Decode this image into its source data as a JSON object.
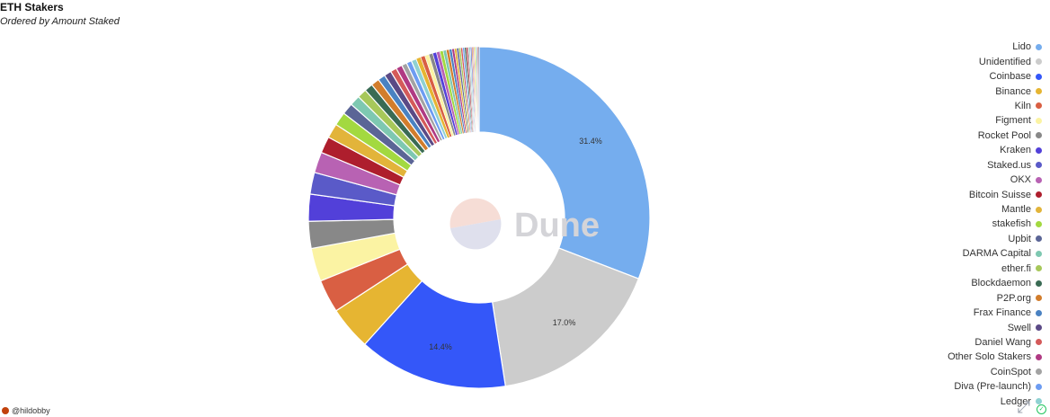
{
  "header": {
    "title": "ETH Stakers",
    "subtitle": "Ordered by Amount Staked"
  },
  "watermark": "Dune",
  "footer": {
    "author": "@hildobby"
  },
  "icons": {
    "expand": "expand-icon",
    "status": "check-icon"
  },
  "chart_data": {
    "type": "pie",
    "variant": "donut",
    "legend_position": "right",
    "slices": [
      {
        "label": "Lido",
        "value": 31.4,
        "color": "#75adee",
        "shown_label": "31.4%"
      },
      {
        "label": "Unidentified",
        "value": 17.0,
        "color": "#cccccc",
        "shown_label": "17.0%"
      },
      {
        "label": "Coinbase",
        "value": 14.4,
        "color": "#3457f9",
        "shown_label": "14.4%"
      },
      {
        "label": "Binance",
        "value": 4.2,
        "color": "#e6b532"
      },
      {
        "label": "Kiln",
        "value": 3.2,
        "color": "#d95f43"
      },
      {
        "label": "Figment",
        "value": 3.2,
        "color": "#fbf3a3"
      },
      {
        "label": "Rocket Pool",
        "value": 2.6,
        "color": "#888888"
      },
      {
        "label": "Kraken",
        "value": 2.6,
        "color": "#5240d9"
      },
      {
        "label": "Staked.us",
        "value": 2.1,
        "color": "#5a5ac8"
      },
      {
        "label": "OKX",
        "value": 2.0,
        "color": "#b862b3"
      },
      {
        "label": "Bitcoin Suisse",
        "value": 1.6,
        "color": "#ae1e2d"
      },
      {
        "label": "Mantle",
        "value": 1.4,
        "color": "#e2b43a"
      },
      {
        "label": "stakefish",
        "value": 1.3,
        "color": "#a3d940"
      },
      {
        "label": "Upbit",
        "value": 1.1,
        "color": "#5b6596"
      },
      {
        "label": "DARMA Capital",
        "value": 1.0,
        "color": "#7ec8b1"
      },
      {
        "label": "ether.fi",
        "value": 0.9,
        "color": "#a7c85a"
      },
      {
        "label": "Blockdaemon",
        "value": 0.8,
        "color": "#3a6b54"
      },
      {
        "label": "P2P.org",
        "value": 0.8,
        "color": "#d27d2c"
      },
      {
        "label": "Frax Finance",
        "value": 0.7,
        "color": "#4a82c2"
      },
      {
        "label": "Swell",
        "value": 0.7,
        "color": "#5b4a86"
      },
      {
        "label": "Daniel Wang",
        "value": 0.6,
        "color": "#d45a5a"
      },
      {
        "label": "Other Solo Stakers",
        "value": 0.6,
        "color": "#b03a83"
      },
      {
        "label": "CoinSpot",
        "value": 0.5,
        "color": "#a3a3a3"
      },
      {
        "label": "Diva (Pre-launch)",
        "value": 0.5,
        "color": "#6d9cf2"
      },
      {
        "label": "Ledger",
        "value": 0.5,
        "color": "#8fd1d2"
      }
    ],
    "tail_slices": [
      {
        "value": 0.45,
        "color": "#e6b532"
      },
      {
        "value": 0.42,
        "color": "#d95f43"
      },
      {
        "value": 0.4,
        "color": "#fbf3a3"
      },
      {
        "value": 0.38,
        "color": "#888888"
      },
      {
        "value": 0.36,
        "color": "#5240d9"
      },
      {
        "value": 0.34,
        "color": "#b862b3"
      },
      {
        "value": 0.32,
        "color": "#a3d940"
      },
      {
        "value": 0.3,
        "color": "#7ec8b1"
      },
      {
        "value": 0.28,
        "color": "#d27d2c"
      },
      {
        "value": 0.26,
        "color": "#4a82c2"
      },
      {
        "value": 0.24,
        "color": "#b03a83"
      },
      {
        "value": 0.22,
        "color": "#e2b43a"
      },
      {
        "value": 0.2,
        "color": "#5b6596"
      },
      {
        "value": 0.19,
        "color": "#a7c85a"
      },
      {
        "value": 0.18,
        "color": "#d45a5a"
      },
      {
        "value": 0.17,
        "color": "#6d9cf2"
      },
      {
        "value": 0.16,
        "color": "#3a6b54"
      },
      {
        "value": 0.15,
        "color": "#ae1e2d"
      },
      {
        "value": 0.14,
        "color": "#a3a3a3"
      },
      {
        "value": 0.13,
        "color": "#8fd1d2"
      },
      {
        "value": 0.12,
        "color": "#5a5ac8"
      },
      {
        "value": 0.11,
        "color": "#d27d2c"
      },
      {
        "value": 0.1,
        "color": "#b862b3"
      },
      {
        "value": 0.1,
        "color": "#e6b532"
      },
      {
        "value": 0.1,
        "color": "#a3d940"
      },
      {
        "value": 0.1,
        "color": "#4a82c2"
      },
      {
        "value": 0.1,
        "color": "#d95f43"
      },
      {
        "value": 0.1,
        "color": "#5b6596"
      }
    ]
  }
}
